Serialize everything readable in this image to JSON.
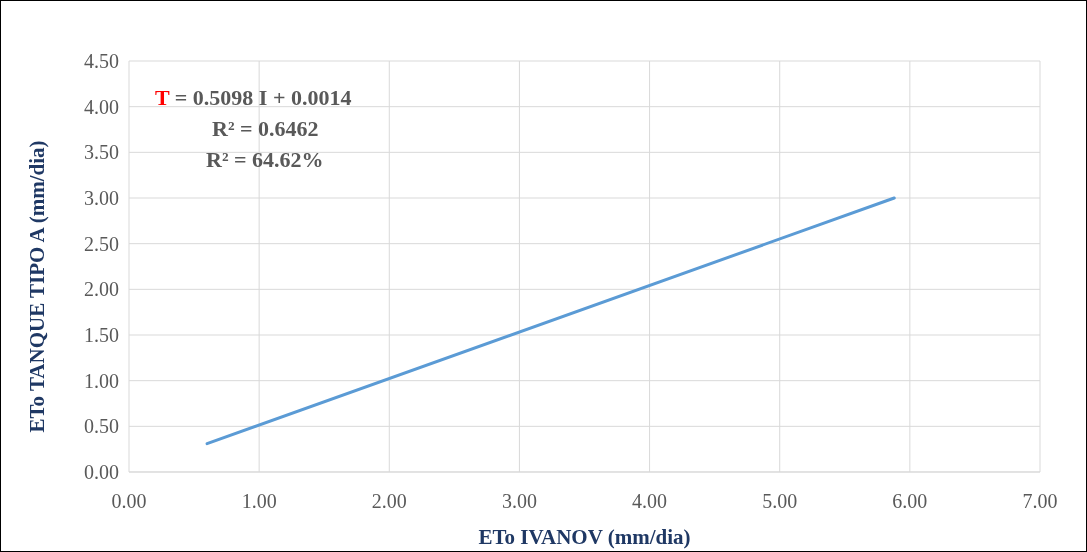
{
  "chart_data": {
    "type": "line",
    "xlabel": "ETo IVANOV (mm/dia)",
    "ylabel": "ETo TANQUE TIPO A (mm/dia)",
    "x": [
      0.6,
      5.88
    ],
    "series": [
      {
        "color": "#5b9bd5",
        "values": [
          0.31,
          3.0
        ]
      }
    ],
    "xlim": [
      0,
      7
    ],
    "xticks": [
      {
        "value": 0,
        "label": "0.00"
      },
      {
        "value": 1,
        "label": "1.00"
      },
      {
        "value": 2,
        "label": "2.00"
      },
      {
        "value": 3,
        "label": "3.00"
      },
      {
        "value": 4,
        "label": "4.00"
      },
      {
        "value": 5,
        "label": "5.00"
      },
      {
        "value": 6,
        "label": "6.00"
      },
      {
        "value": 7,
        "label": "7.00"
      }
    ],
    "ylim": [
      0,
      4.5
    ],
    "yticks": [
      {
        "value": 0,
        "label": "0.00"
      },
      {
        "value": 0.5,
        "label": "0.50"
      },
      {
        "value": 1,
        "label": "1.00"
      },
      {
        "value": 1.5,
        "label": "1.50"
      },
      {
        "value": 2,
        "label": "2.00"
      },
      {
        "value": 2.5,
        "label": "2.50"
      },
      {
        "value": 3,
        "label": "3.00"
      },
      {
        "value": 3.5,
        "label": "3.50"
      },
      {
        "value": 4,
        "label": "4.00"
      },
      {
        "value": 4.5,
        "label": "4.50"
      }
    ],
    "grid": true,
    "marker": "none",
    "line_style": "solid",
    "annotations": [
      "T = 0.5098 I + 0.0014",
      "R² = 0.6462",
      "R² = 64.62%"
    ]
  }
}
